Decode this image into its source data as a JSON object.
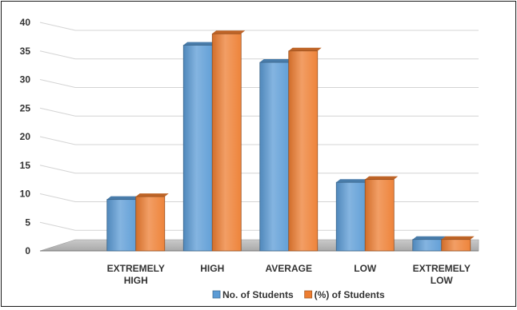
{
  "chart_data": {
    "type": "bar",
    "title": "",
    "xlabel": "",
    "ylabel": "",
    "ylim": [
      0,
      40
    ],
    "yticks": [
      0,
      5,
      10,
      15,
      20,
      25,
      30,
      35,
      40
    ],
    "grid": true,
    "legend_position": "bottom",
    "categories": [
      [
        "EXTREMELY",
        "HIGH"
      ],
      [
        "HIGH"
      ],
      [
        "AVERAGE"
      ],
      [
        "LOW"
      ],
      [
        "EXTREMELY",
        "LOW"
      ]
    ],
    "series": [
      {
        "name": "No. of Students",
        "values": [
          9,
          36,
          33,
          12,
          2
        ],
        "color": "#5B9BD5"
      },
      {
        "name": "(%) of Students",
        "values": [
          9.5,
          38,
          35,
          12.5,
          2
        ],
        "color": "#ED7D31"
      }
    ]
  }
}
